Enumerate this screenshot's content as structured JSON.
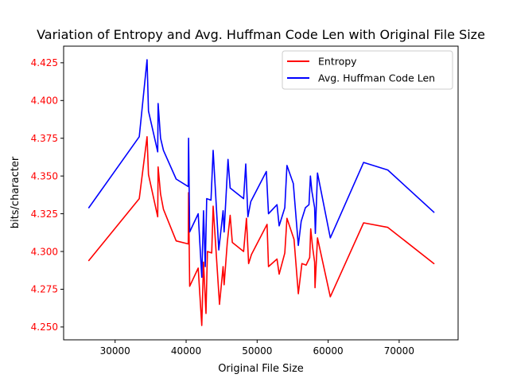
{
  "chart_data": {
    "type": "line",
    "title": "Variation of Entropy and Avg. Huffman Code Len with Original File Size",
    "xlabel": "Original File Size",
    "ylabel": "bits/character",
    "xlim": [
      22750,
      78300
    ],
    "ylim": [
      4.2415,
      4.436
    ],
    "xticks": [
      30000,
      40000,
      50000,
      60000,
      70000
    ],
    "xtick_labels": [
      "30000",
      "40000",
      "50000",
      "60000",
      "70000"
    ],
    "yticks": [
      4.25,
      4.275,
      4.3,
      4.325,
      4.35,
      4.375,
      4.4,
      4.425
    ],
    "ytick_labels": [
      "4.250",
      "4.275",
      "4.300",
      "4.325",
      "4.350",
      "4.375",
      "4.400",
      "4.425"
    ],
    "ytick_color": "#ff0000",
    "grid": false,
    "legend_position": "upper right",
    "series": [
      {
        "name": "Entropy",
        "color": "#ff0000",
        "points": [
          [
            26300,
            4.294
          ],
          [
            33400,
            4.335
          ],
          [
            34500,
            4.376
          ],
          [
            34700,
            4.351
          ],
          [
            36000,
            4.323
          ],
          [
            36050,
            4.356
          ],
          [
            36400,
            4.338
          ],
          [
            36800,
            4.328
          ],
          [
            38600,
            4.307
          ],
          [
            40300,
            4.305
          ],
          [
            40350,
            4.339
          ],
          [
            40500,
            4.277
          ],
          [
            41700,
            4.289
          ],
          [
            42200,
            4.251
          ],
          [
            42450,
            4.293
          ],
          [
            42800,
            4.259
          ],
          [
            43000,
            4.3
          ],
          [
            43600,
            4.299
          ],
          [
            43800,
            4.33
          ],
          [
            44700,
            4.265
          ],
          [
            45200,
            4.29
          ],
          [
            45350,
            4.278
          ],
          [
            45800,
            4.306
          ],
          [
            46200,
            4.324
          ],
          [
            46500,
            4.306
          ],
          [
            48100,
            4.3
          ],
          [
            48500,
            4.322
          ],
          [
            48800,
            4.292
          ],
          [
            49200,
            4.298
          ],
          [
            51400,
            4.318
          ],
          [
            51600,
            4.29
          ],
          [
            52800,
            4.295
          ],
          [
            53100,
            4.285
          ],
          [
            53900,
            4.299
          ],
          [
            54200,
            4.322
          ],
          [
            55200,
            4.308
          ],
          [
            55800,
            4.272
          ],
          [
            56300,
            4.292
          ],
          [
            56900,
            4.291
          ],
          [
            57400,
            4.296
          ],
          [
            57550,
            4.315
          ],
          [
            57800,
            4.303
          ],
          [
            58100,
            4.293
          ],
          [
            58150,
            4.276
          ],
          [
            58500,
            4.309
          ],
          [
            60300,
            4.27
          ],
          [
            65000,
            4.319
          ],
          [
            68400,
            4.316
          ],
          [
            74900,
            4.292
          ]
        ]
      },
      {
        "name": "Avg. Huffman Code Len",
        "color": "#0000ff",
        "points": [
          [
            26300,
            4.329
          ],
          [
            33400,
            4.376
          ],
          [
            34500,
            4.427
          ],
          [
            34700,
            4.393
          ],
          [
            36000,
            4.366
          ],
          [
            36050,
            4.398
          ],
          [
            36400,
            4.375
          ],
          [
            36800,
            4.367
          ],
          [
            38600,
            4.348
          ],
          [
            40300,
            4.343
          ],
          [
            40350,
            4.375
          ],
          [
            40500,
            4.313
          ],
          [
            41700,
            4.325
          ],
          [
            42200,
            4.283
          ],
          [
            42450,
            4.327
          ],
          [
            42700,
            4.29
          ],
          [
            42900,
            4.335
          ],
          [
            43500,
            4.334
          ],
          [
            43800,
            4.367
          ],
          [
            44600,
            4.301
          ],
          [
            45200,
            4.327
          ],
          [
            45350,
            4.313
          ],
          [
            45900,
            4.361
          ],
          [
            46200,
            4.342
          ],
          [
            48100,
            4.335
          ],
          [
            48400,
            4.358
          ],
          [
            48700,
            4.323
          ],
          [
            49100,
            4.333
          ],
          [
            51300,
            4.353
          ],
          [
            51600,
            4.325
          ],
          [
            52800,
            4.331
          ],
          [
            53100,
            4.317
          ],
          [
            53900,
            4.329
          ],
          [
            54200,
            4.357
          ],
          [
            55100,
            4.345
          ],
          [
            55800,
            4.304
          ],
          [
            56200,
            4.32
          ],
          [
            56800,
            4.329
          ],
          [
            57300,
            4.331
          ],
          [
            57500,
            4.35
          ],
          [
            57700,
            4.34
          ],
          [
            58100,
            4.329
          ],
          [
            58200,
            4.312
          ],
          [
            58500,
            4.352
          ],
          [
            60300,
            4.309
          ],
          [
            65000,
            4.359
          ],
          [
            68400,
            4.354
          ],
          [
            74900,
            4.326
          ]
        ]
      }
    ]
  }
}
